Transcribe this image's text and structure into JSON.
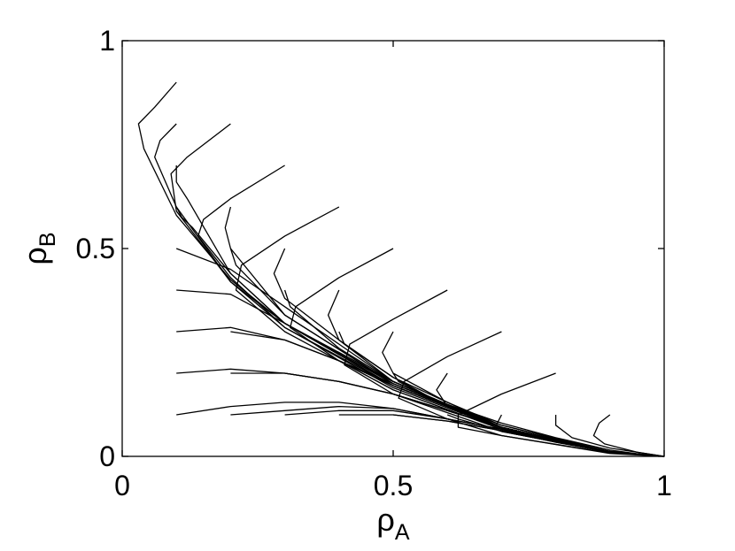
{
  "chart_data": {
    "type": "line",
    "title": "",
    "xlabel": "ρA",
    "ylabel": "ρB",
    "xlabel_parts": {
      "base": "ρ",
      "sub": "A"
    },
    "ylabel_parts": {
      "base": "ρ",
      "sub": "B"
    },
    "xlim": [
      0,
      1
    ],
    "ylim": [
      0,
      1
    ],
    "xticks": [
      "0",
      "0.5",
      "1"
    ],
    "yticks": [
      "0",
      "0.5",
      "1"
    ],
    "grid": false,
    "legend": "none",
    "line_color": "#000000",
    "series": [
      {
        "x": [
          0.1,
          0.06,
          0.03,
          0.04,
          0.1,
          0.2,
          0.3,
          0.4,
          0.5,
          0.6,
          0.7,
          0.8,
          0.9,
          0.97,
          1.0
        ],
        "y": [
          0.9,
          0.84,
          0.8,
          0.74,
          0.58,
          0.425,
          0.32,
          0.245,
          0.18,
          0.125,
          0.08,
          0.045,
          0.015,
          0.003,
          0.0
        ]
      },
      {
        "x": [
          0.1,
          0.07,
          0.06,
          0.1,
          0.2,
          0.3,
          0.5,
          0.7,
          0.9,
          1.0
        ],
        "y": [
          0.8,
          0.76,
          0.72,
          0.6,
          0.42,
          0.32,
          0.175,
          0.075,
          0.012,
          0.0
        ]
      },
      {
        "x": [
          0.2,
          0.12,
          0.09,
          0.1,
          0.2,
          0.3,
          0.5,
          0.7,
          0.9,
          1.0
        ],
        "y": [
          0.8,
          0.72,
          0.68,
          0.59,
          0.42,
          0.31,
          0.17,
          0.07,
          0.01,
          0.0
        ]
      },
      {
        "x": [
          0.1,
          0.1,
          0.12,
          0.2,
          0.3,
          0.5,
          0.7,
          0.9,
          1.0
        ],
        "y": [
          0.7,
          0.66,
          0.62,
          0.44,
          0.32,
          0.17,
          0.07,
          0.01,
          0.0
        ]
      },
      {
        "x": [
          0.3,
          0.2,
          0.15,
          0.14,
          0.2,
          0.3,
          0.5,
          0.7,
          0.9,
          1.0
        ],
        "y": [
          0.7,
          0.62,
          0.57,
          0.53,
          0.43,
          0.31,
          0.165,
          0.068,
          0.01,
          0.0
        ]
      },
      {
        "x": [
          0.1,
          0.11,
          0.13,
          0.2,
          0.3,
          0.5,
          0.7,
          0.9,
          1.0
        ],
        "y": [
          0.6,
          0.575,
          0.55,
          0.44,
          0.32,
          0.17,
          0.07,
          0.01,
          0.0
        ]
      },
      {
        "x": [
          0.2,
          0.19,
          0.2,
          0.3,
          0.5,
          0.7,
          0.9,
          1.0
        ],
        "y": [
          0.6,
          0.55,
          0.5,
          0.34,
          0.175,
          0.07,
          0.01,
          0.0
        ]
      },
      {
        "x": [
          0.4,
          0.3,
          0.22,
          0.21,
          0.3,
          0.5,
          0.7,
          0.9,
          1.0
        ],
        "y": [
          0.6,
          0.53,
          0.46,
          0.4,
          0.3,
          0.16,
          0.065,
          0.01,
          0.0
        ]
      },
      {
        "x": [
          0.2,
          0.21,
          0.3,
          0.5,
          0.7,
          0.9,
          1.0
        ],
        "y": [
          0.5,
          0.46,
          0.34,
          0.175,
          0.07,
          0.01,
          0.0
        ]
      },
      {
        "x": [
          0.3,
          0.28,
          0.3,
          0.5,
          0.7,
          0.9,
          1.0
        ],
        "y": [
          0.5,
          0.44,
          0.38,
          0.18,
          0.07,
          0.01,
          0.0
        ]
      },
      {
        "x": [
          0.5,
          0.4,
          0.32,
          0.31,
          0.4,
          0.5,
          0.7,
          0.9,
          1.0
        ],
        "y": [
          0.5,
          0.43,
          0.36,
          0.31,
          0.23,
          0.16,
          0.065,
          0.01,
          0.0
        ]
      },
      {
        "x": [
          0.3,
          0.31,
          0.4,
          0.5,
          0.7,
          0.9,
          1.0
        ],
        "y": [
          0.4,
          0.36,
          0.26,
          0.18,
          0.07,
          0.01,
          0.0
        ]
      },
      {
        "x": [
          0.4,
          0.38,
          0.4,
          0.5,
          0.7,
          0.9,
          1.0
        ],
        "y": [
          0.4,
          0.34,
          0.28,
          0.19,
          0.07,
          0.01,
          0.0
        ]
      },
      {
        "x": [
          0.6,
          0.5,
          0.42,
          0.41,
          0.5,
          0.7,
          0.9,
          1.0
        ],
        "y": [
          0.4,
          0.33,
          0.27,
          0.22,
          0.15,
          0.06,
          0.01,
          0.0
        ]
      },
      {
        "x": [
          0.4,
          0.41,
          0.5,
          0.6,
          0.7,
          0.9,
          1.0
        ],
        "y": [
          0.3,
          0.27,
          0.19,
          0.12,
          0.07,
          0.01,
          0.0
        ]
      },
      {
        "x": [
          0.5,
          0.48,
          0.5,
          0.6,
          0.7,
          0.9,
          1.0
        ],
        "y": [
          0.3,
          0.25,
          0.2,
          0.13,
          0.075,
          0.01,
          0.0
        ]
      },
      {
        "x": [
          0.7,
          0.6,
          0.52,
          0.51,
          0.6,
          0.7,
          0.9,
          1.0
        ],
        "y": [
          0.3,
          0.24,
          0.18,
          0.14,
          0.09,
          0.05,
          0.008,
          0.0
        ]
      },
      {
        "x": [
          0.5,
          0.51,
          0.6,
          0.7,
          0.9,
          1.0
        ],
        "y": [
          0.2,
          0.18,
          0.12,
          0.07,
          0.01,
          0.0
        ]
      },
      {
        "x": [
          0.6,
          0.58,
          0.6,
          0.7,
          0.9,
          1.0
        ],
        "y": [
          0.2,
          0.16,
          0.12,
          0.07,
          0.01,
          0.0
        ]
      },
      {
        "x": [
          0.8,
          0.7,
          0.62,
          0.62,
          0.7,
          0.9,
          1.0
        ],
        "y": [
          0.2,
          0.15,
          0.1,
          0.07,
          0.05,
          0.007,
          0.0
        ]
      },
      {
        "x": [
          0.6,
          0.62,
          0.7,
          0.8,
          0.9,
          1.0
        ],
        "y": [
          0.1,
          0.09,
          0.06,
          0.035,
          0.012,
          0.0
        ]
      },
      {
        "x": [
          0.7,
          0.69,
          0.72,
          0.8,
          0.9,
          1.0
        ],
        "y": [
          0.1,
          0.075,
          0.055,
          0.035,
          0.012,
          0.0
        ]
      },
      {
        "x": [
          0.8,
          0.8,
          0.83,
          0.9,
          1.0
        ],
        "y": [
          0.1,
          0.075,
          0.045,
          0.02,
          0.0
        ]
      },
      {
        "x": [
          0.9,
          0.88,
          0.87,
          0.89,
          0.95,
          1.0
        ],
        "y": [
          0.1,
          0.08,
          0.05,
          0.03,
          0.01,
          0.0
        ]
      },
      {
        "x": [
          0.1,
          0.2,
          0.3,
          0.5,
          0.7,
          0.9,
          1.0
        ],
        "y": [
          0.5,
          0.45,
          0.36,
          0.18,
          0.07,
          0.01,
          0.0
        ]
      },
      {
        "x": [
          0.1,
          0.2,
          0.3,
          0.4,
          0.5,
          0.7,
          0.9,
          1.0
        ],
        "y": [
          0.4,
          0.39,
          0.32,
          0.25,
          0.18,
          0.07,
          0.01,
          0.0
        ]
      },
      {
        "x": [
          0.1,
          0.2,
          0.3,
          0.4,
          0.5,
          0.7,
          0.9,
          1.0
        ],
        "y": [
          0.3,
          0.31,
          0.28,
          0.23,
          0.17,
          0.07,
          0.01,
          0.0
        ]
      },
      {
        "x": [
          0.2,
          0.3,
          0.4,
          0.5,
          0.7,
          0.9,
          1.0
        ],
        "y": [
          0.3,
          0.28,
          0.23,
          0.175,
          0.07,
          0.01,
          0.0
        ]
      },
      {
        "x": [
          0.1,
          0.2,
          0.3,
          0.4,
          0.5,
          0.6,
          0.7,
          0.9,
          1.0
        ],
        "y": [
          0.2,
          0.21,
          0.2,
          0.18,
          0.15,
          0.11,
          0.07,
          0.01,
          0.0
        ]
      },
      {
        "x": [
          0.2,
          0.3,
          0.4,
          0.5,
          0.6,
          0.7,
          0.9,
          1.0
        ],
        "y": [
          0.2,
          0.2,
          0.18,
          0.15,
          0.11,
          0.07,
          0.01,
          0.0
        ]
      },
      {
        "x": [
          0.3,
          0.4,
          0.5,
          0.6,
          0.7,
          0.9,
          1.0
        ],
        "y": [
          0.2,
          0.18,
          0.15,
          0.11,
          0.07,
          0.01,
          0.0
        ]
      },
      {
        "x": [
          0.1,
          0.2,
          0.3,
          0.4,
          0.5,
          0.6,
          0.7,
          0.8,
          0.9,
          1.0
        ],
        "y": [
          0.1,
          0.12,
          0.13,
          0.13,
          0.115,
          0.09,
          0.065,
          0.035,
          0.01,
          0.0
        ]
      },
      {
        "x": [
          0.2,
          0.3,
          0.4,
          0.5,
          0.6,
          0.7,
          0.8,
          0.9,
          1.0
        ],
        "y": [
          0.1,
          0.11,
          0.12,
          0.115,
          0.09,
          0.065,
          0.035,
          0.01,
          0.0
        ]
      },
      {
        "x": [
          0.3,
          0.4,
          0.5,
          0.6,
          0.7,
          0.8,
          0.9,
          1.0
        ],
        "y": [
          0.1,
          0.11,
          0.11,
          0.09,
          0.065,
          0.035,
          0.01,
          0.0
        ]
      },
      {
        "x": [
          0.4,
          0.5,
          0.6,
          0.7,
          0.8,
          0.9,
          1.0
        ],
        "y": [
          0.1,
          0.1,
          0.085,
          0.062,
          0.034,
          0.01,
          0.0
        ]
      },
      {
        "x": [
          0.5,
          0.6,
          0.7,
          0.8,
          0.9,
          1.0
        ],
        "y": [
          0.1,
          0.085,
          0.062,
          0.034,
          0.01,
          0.0
        ]
      }
    ]
  }
}
